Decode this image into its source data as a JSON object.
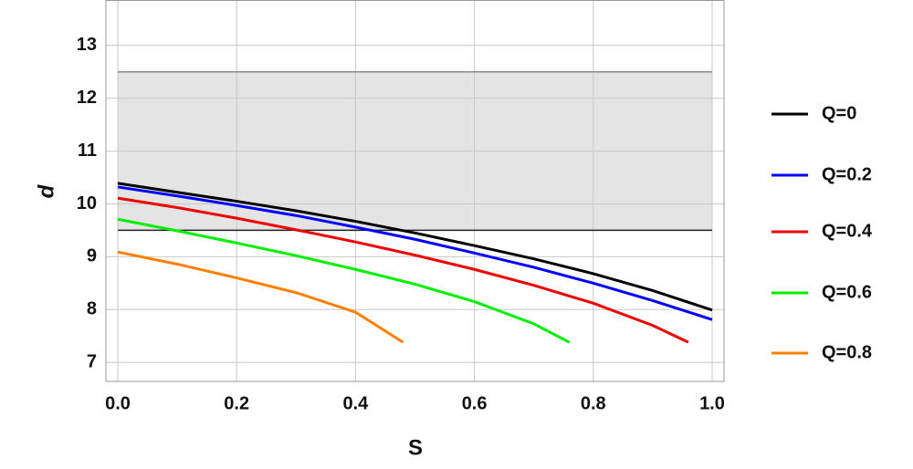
{
  "chart_data": {
    "type": "line",
    "x_label": "S",
    "y_label": "d",
    "xlim": [
      -0.02,
      1.02
    ],
    "ylim": [
      6.64,
      13.86
    ],
    "xticks": [
      {
        "value": 0,
        "label": "0.0"
      },
      0.2,
      0.4,
      0.6,
      0.8,
      {
        "value": 1,
        "label": "1.0"
      }
    ],
    "yticks": [
      7,
      8,
      9,
      10,
      11,
      12,
      13
    ],
    "grid": true,
    "legend": "right",
    "band": {
      "x": [
        0,
        1
      ],
      "y": [
        9.5,
        12.5
      ],
      "color": "#e4e4e4"
    },
    "hlines": [
      {
        "value": 12.5,
        "color": "#888888"
      },
      {
        "value": 9.5,
        "color": "#222222"
      }
    ],
    "series": [
      {
        "name": "Q=0",
        "color": "#000000",
        "x": [
          0,
          0.1,
          0.2,
          0.3,
          0.4,
          0.5,
          0.6,
          0.7,
          0.8,
          0.9,
          1.0
        ],
        "values": [
          10.39,
          10.22,
          10.05,
          9.87,
          9.67,
          9.45,
          9.21,
          8.96,
          8.68,
          8.36,
          7.99
        ]
      },
      {
        "name": "Q=0.2",
        "color": "#0000ff",
        "x": [
          0,
          0.1,
          0.2,
          0.3,
          0.4,
          0.5,
          0.6,
          0.7,
          0.8,
          0.9,
          1.0
        ],
        "values": [
          10.32,
          10.15,
          9.97,
          9.78,
          9.56,
          9.33,
          9.07,
          8.8,
          8.5,
          8.17,
          7.81
        ]
      },
      {
        "name": "Q=0.4",
        "color": "#ee0000",
        "x": [
          0,
          0.1,
          0.2,
          0.3,
          0.4,
          0.5,
          0.6,
          0.7,
          0.8,
          0.9,
          0.96
        ],
        "values": [
          10.11,
          9.93,
          9.73,
          9.51,
          9.28,
          9.03,
          8.76,
          8.46,
          8.12,
          7.7,
          7.38
        ]
      },
      {
        "name": "Q=0.6",
        "color": "#00ee00",
        "x": [
          0,
          0.1,
          0.2,
          0.3,
          0.4,
          0.5,
          0.6,
          0.7,
          0.76
        ],
        "values": [
          9.71,
          9.49,
          9.26,
          9.02,
          8.76,
          8.48,
          8.15,
          7.73,
          7.38
        ]
      },
      {
        "name": "Q=0.8",
        "color": "#ff8000",
        "x": [
          0,
          0.1,
          0.2,
          0.3,
          0.4,
          0.48
        ],
        "values": [
          9.09,
          8.86,
          8.6,
          8.32,
          7.95,
          7.38
        ]
      }
    ]
  }
}
